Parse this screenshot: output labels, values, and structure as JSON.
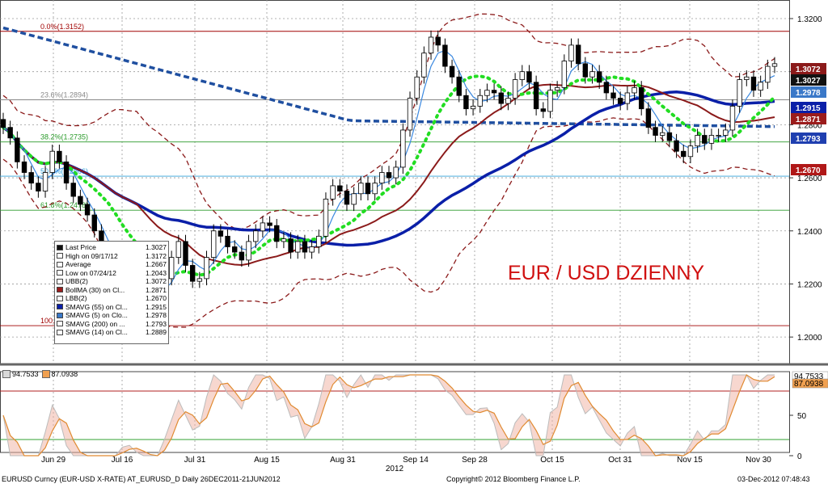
{
  "title_overlay": "EUR / USD DZIENNY",
  "footer": {
    "left": "EURUSD Curncy (EUR-USD X-RATE) AT_EURUSD_D  Daily 26DEC2011-21JUN2012",
    "center": "Copyright© 2012 Bloomberg Finance L.P.",
    "right": "03-Dec-2012 07:48:43"
  },
  "x_axis": {
    "ticks": [
      "Jun 29",
      "Jul 16",
      "Jul 31",
      "Aug 15",
      "Aug 31",
      "Sep 14",
      "Sep 28",
      "Oct 15",
      "Oct 31",
      "Nov 15",
      "Nov 30"
    ],
    "year_label": "2012"
  },
  "y_axis": {
    "ticks": [
      "1.3200",
      "1.3000",
      "1.2800",
      "1.2600",
      "1.2400",
      "1.2200",
      "1.2000"
    ]
  },
  "fib_labels": [
    "0.0%(1.3152)",
    "23.6%(1.2894)",
    "38.2%(1.2735)",
    "50.0%(1.2606)",
    "61.8%(1.2478)",
    "100.0"
  ],
  "price_tags": [
    {
      "text": "1.3072",
      "bg": "#8b1a1a",
      "fg": "#ffffff",
      "value": 1.3072
    },
    {
      "text": "1.3027",
      "bg": "#111111",
      "fg": "#ffffff",
      "value": 1.3027
    },
    {
      "text": "1.2978",
      "bg": "#3a78c8",
      "fg": "#ffffff",
      "value": 1.2978
    },
    {
      "text": "1.2915",
      "bg": "#0a1fa8",
      "fg": "#ffffff",
      "value": 1.2915
    },
    {
      "text": "1.2871",
      "bg": "#9b1c1c",
      "fg": "#ffffff",
      "value": 1.2871
    },
    {
      "text": "1.2793",
      "bg": "#1f3fb0",
      "fg": "#ffffff",
      "value": 1.2793
    },
    {
      "text": "1.2670",
      "bg": "#b01818",
      "fg": "#ffffff",
      "value": 1.267
    }
  ],
  "legend": [
    {
      "name": "Last Price",
      "value": "1.3027",
      "color": "#111111"
    },
    {
      "name": "High on 09/17/12",
      "value": "1.3172",
      "color": "#ffffff"
    },
    {
      "name": "Average",
      "value": "1.2667",
      "color": "#ffffff"
    },
    {
      "name": "Low on 07/24/12",
      "value": "1.2043",
      "color": "#ffffff"
    },
    {
      "name": "UBB(2)",
      "value": "1.3072",
      "color": "#ffffff"
    },
    {
      "name": "BollMA (30) on Cl...",
      "value": "1.2871",
      "color": "#9b1c1c"
    },
    {
      "name": "LBB(2)",
      "value": "1.2670",
      "color": "#ffffff"
    },
    {
      "name": "SMAVG (55) on Cl...",
      "value": "1.2915",
      "color": "#0a1fa8"
    },
    {
      "name": "SMAVG (5) on Clo...",
      "value": "1.2978",
      "color": "#3a78c8"
    },
    {
      "name": "SMAVG (200) on ...",
      "value": "1.2793",
      "color": "#ffffff"
    },
    {
      "name": "SMAVG (14) on Cl...",
      "value": "1.2889",
      "color": "#ffffff"
    }
  ],
  "indicator": {
    "legend": [
      {
        "text": "94.7533",
        "color": "#d8d8d8"
      },
      {
        "text": "87.0938",
        "color": "#f0a050"
      }
    ],
    "y_ticks": [
      "50",
      "0"
    ],
    "tags": [
      {
        "text": "94.7533",
        "value": 94.7533
      },
      {
        "text": "87.0938",
        "value": 87.0938
      }
    ]
  },
  "chart_data": {
    "type": "candlestick",
    "title": "EUR / USD DZIENNY",
    "ylim": [
      1.19,
      1.327
    ],
    "x_categories": [
      "Jun 29",
      "Jul 16",
      "Jul 31",
      "Aug 15",
      "Aug 31",
      "Sep 14",
      "Sep 28",
      "Oct 15",
      "Oct 31",
      "Nov 15",
      "Nov 30"
    ],
    "fib_levels": [
      1.3152,
      1.2894,
      1.2735,
      1.2606,
      1.2478,
      1.2043
    ],
    "close_series": [
      1.279,
      1.275,
      1.266,
      1.262,
      1.258,
      1.255,
      1.262,
      1.27,
      1.266,
      1.258,
      1.253,
      1.25,
      1.246,
      1.24,
      1.232,
      1.227,
      1.223,
      1.228,
      1.229,
      1.225,
      1.22,
      1.216,
      1.214,
      1.222,
      1.23,
      1.236,
      1.227,
      1.221,
      1.222,
      1.23,
      1.24,
      1.238,
      1.234,
      1.232,
      1.229,
      1.236,
      1.24,
      1.243,
      1.242,
      1.236,
      1.237,
      1.232,
      1.236,
      1.232,
      1.234,
      1.238,
      1.252,
      1.257,
      1.255,
      1.25,
      1.254,
      1.258,
      1.254,
      1.258,
      1.262,
      1.26,
      1.264,
      1.278,
      1.29,
      1.298,
      1.307,
      1.313,
      1.31,
      1.302,
      1.298,
      1.291,
      1.286,
      1.287,
      1.291,
      1.293,
      1.292,
      1.288,
      1.29,
      1.297,
      1.3,
      1.296,
      1.286,
      1.285,
      1.293,
      1.294,
      1.304,
      1.31,
      1.303,
      1.298,
      1.3,
      1.296,
      1.292,
      1.29,
      1.288,
      1.292,
      1.294,
      1.286,
      1.279,
      1.276,
      1.277,
      1.274,
      1.27,
      1.268,
      1.272,
      1.276,
      1.273,
      1.276,
      1.276,
      1.278,
      1.287,
      1.297,
      1.298,
      1.293,
      1.296,
      1.302,
      1.303
    ],
    "series": [
      {
        "name": "SMAVG (55) on Cl...",
        "last": 1.2915
      },
      {
        "name": "BollMA (30) on Cl...",
        "last": 1.2871
      },
      {
        "name": "SMAVG (200) on ...",
        "last": 1.2793
      },
      {
        "name": "SMAVG (5) on Clo...",
        "last": 1.2978
      },
      {
        "name": "SMAVG (14) on Cl...",
        "last": 1.2889
      },
      {
        "name": "UBB(2)",
        "last": 1.3072
      },
      {
        "name": "LBB(2)",
        "last": 1.267
      }
    ],
    "indicator": {
      "ylim": [
        0,
        100
      ],
      "levels": [
        80,
        20
      ],
      "last": [
        94.7533,
        87.0938
      ]
    }
  }
}
